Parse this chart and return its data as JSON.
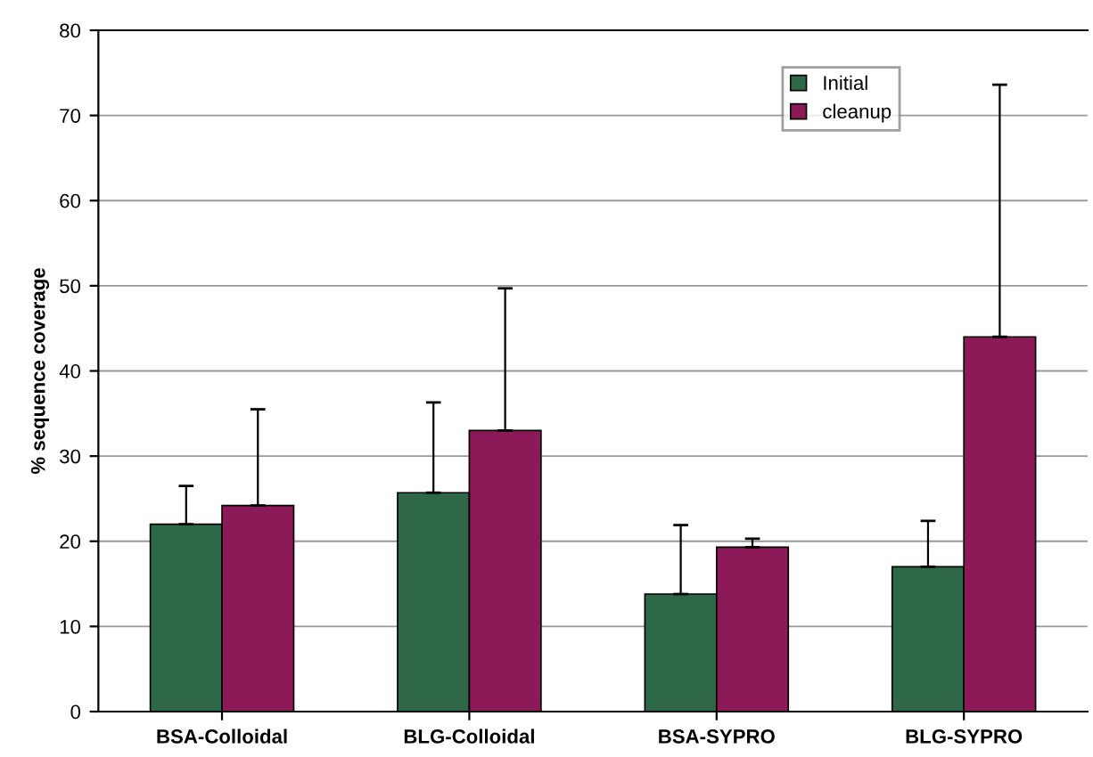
{
  "chart_data": {
    "type": "bar",
    "ylabel": "% sequence coverage",
    "categories": [
      "BSA-Colloidal",
      "BLG-Colloidal",
      "BSA-SYPRO",
      "BLG-SYPRO"
    ],
    "series": [
      {
        "name": "Initial",
        "color": "#2f6848",
        "values": [
          22,
          25.7,
          13.8,
          17
        ],
        "errors": [
          [
            22,
            26.5
          ],
          [
            25.7,
            36.3
          ],
          [
            13.8,
            21.9
          ],
          [
            17,
            22.4
          ]
        ]
      },
      {
        "name": "cleanup",
        "color": "#8c1a58",
        "values": [
          24.2,
          33,
          19.3,
          44
        ],
        "errors": [
          [
            24.2,
            35.5
          ],
          [
            33,
            49.7
          ],
          [
            19.3,
            20.3
          ],
          [
            44,
            73.6
          ]
        ]
      }
    ],
    "ylim": [
      0,
      80
    ],
    "yticks": [
      0,
      10,
      20,
      30,
      40,
      50,
      60,
      70,
      80
    ],
    "grid": "y",
    "legend": "top right"
  }
}
